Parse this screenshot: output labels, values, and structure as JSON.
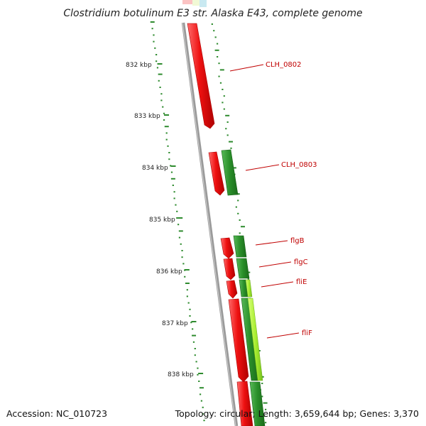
{
  "title": "Clostridium botulinum E3 str. Alaska E43, complete genome",
  "footer": {
    "accession": "Accession: NC_010723",
    "summary": "Topology: circular; Length: 3,659,644 bp; Genes: 3,370"
  },
  "ticks": [
    "832 kbp",
    "833 kbp",
    "834 kbp",
    "835 kbp",
    "836 kbp",
    "837 kbp",
    "838 kbp"
  ],
  "gene_labels": [
    "CLH_0802",
    "CLH_0803",
    "flgB",
    "flgC",
    "fliE",
    "fliF"
  ],
  "colors": {
    "reverse_cds": "#ee1111",
    "forward_cog_dark": "#2a8f2a",
    "forward_cog_light": "#aaee33",
    "gc_dots": "#2e8b2e",
    "backbone": "#888888",
    "label": "#c00000"
  }
}
